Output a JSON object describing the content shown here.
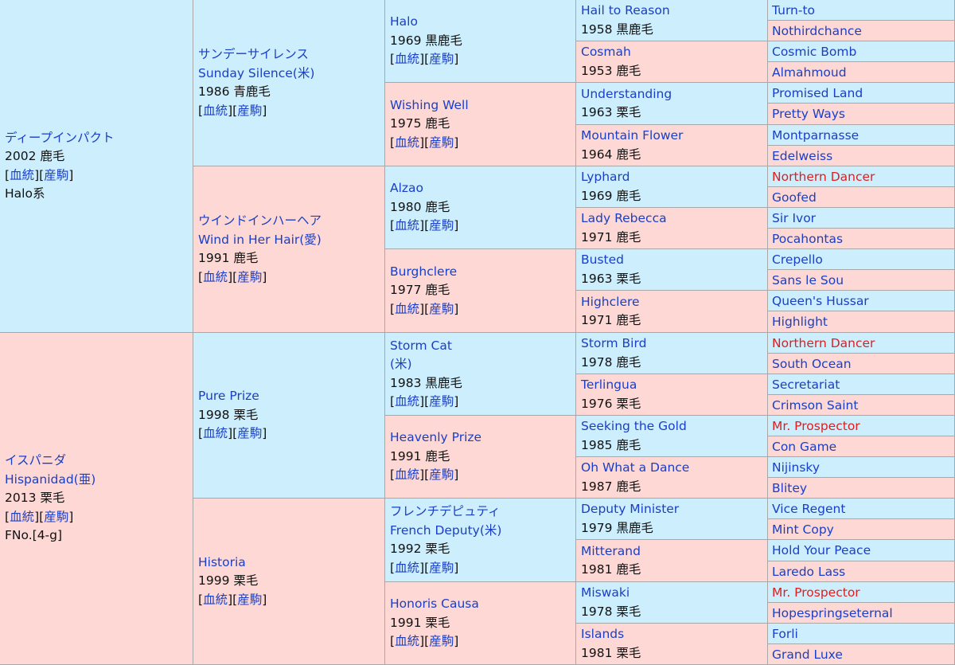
{
  "links": {
    "bloodline": "血統",
    "progeny": "産駒"
  },
  "colors": {
    "male_bg": "#cdeefc",
    "female_bg": "#fdd8d5",
    "link": "#1a3fc7",
    "highlight": "#e01e1e"
  },
  "gen1": [
    {
      "id": "deep-impact",
      "sex": "m",
      "lines": [
        "ディープインパクト"
      ],
      "info": "2002 鹿毛",
      "links": true,
      "extra": [
        "Halo系"
      ]
    },
    {
      "id": "hispanidad",
      "sex": "f",
      "lines": [
        "イスパニダ",
        "Hispanidad(亜)"
      ],
      "info": "2013 栗毛",
      "links": true,
      "extra": [
        "FNo.[4-g]"
      ]
    }
  ],
  "gen2": [
    {
      "id": "sunday-silence",
      "sex": "m",
      "lines": [
        "サンデーサイレンス",
        "Sunday Silence(米)"
      ],
      "info": "1986 青鹿毛",
      "links": true
    },
    {
      "id": "wind-in-her-hair",
      "sex": "f",
      "lines": [
        "ウインドインハーヘア",
        "Wind in Her Hair(愛)"
      ],
      "info": "1991 鹿毛",
      "links": true
    },
    {
      "id": "pure-prize",
      "sex": "m",
      "lines": [
        "Pure Prize"
      ],
      "info": "1998 栗毛",
      "links": true
    },
    {
      "id": "historia",
      "sex": "f",
      "lines": [
        "Historia"
      ],
      "info": "1999 栗毛",
      "links": true
    }
  ],
  "gen3": [
    {
      "id": "halo",
      "sex": "m",
      "lines": [
        "Halo"
      ],
      "info": "1969 黒鹿毛",
      "links": true
    },
    {
      "id": "wishing-well",
      "sex": "f",
      "lines": [
        "Wishing Well"
      ],
      "info": "1975 鹿毛",
      "links": true
    },
    {
      "id": "alzao",
      "sex": "m",
      "lines": [
        "Alzao"
      ],
      "info": "1980 鹿毛",
      "links": true
    },
    {
      "id": "burghclere",
      "sex": "f",
      "lines": [
        "Burghclere"
      ],
      "info": "1977 鹿毛",
      "links": true
    },
    {
      "id": "storm-cat",
      "sex": "m",
      "lines": [
        "Storm Cat",
        "(米)"
      ],
      "info": "1983 黒鹿毛",
      "links": true
    },
    {
      "id": "heavenly-prize",
      "sex": "f",
      "lines": [
        "Heavenly Prize"
      ],
      "info": "1991 鹿毛",
      "links": true
    },
    {
      "id": "french-deputy",
      "sex": "m",
      "lines": [
        "フレンチデピュティ",
        "French Deputy(米)"
      ],
      "info": "1992 栗毛",
      "links": true
    },
    {
      "id": "honoris-causa",
      "sex": "f",
      "lines": [
        "Honoris Causa"
      ],
      "info": "1991 栗毛",
      "links": true
    }
  ],
  "gen4": [
    {
      "id": "hail-to-reason",
      "sex": "m",
      "lines": [
        "Hail to Reason"
      ],
      "info": "1958 黒鹿毛"
    },
    {
      "id": "cosmah",
      "sex": "f",
      "lines": [
        "Cosmah"
      ],
      "info": "1953 鹿毛"
    },
    {
      "id": "understanding",
      "sex": "m",
      "lines": [
        "Understanding"
      ],
      "info": "1963 栗毛"
    },
    {
      "id": "mountain-flower",
      "sex": "f",
      "lines": [
        "Mountain Flower"
      ],
      "info": "1964 鹿毛"
    },
    {
      "id": "lyphard",
      "sex": "m",
      "lines": [
        "Lyphard"
      ],
      "info": "1969 鹿毛"
    },
    {
      "id": "lady-rebecca",
      "sex": "f",
      "lines": [
        "Lady Rebecca"
      ],
      "info": "1971 鹿毛"
    },
    {
      "id": "busted",
      "sex": "m",
      "lines": [
        "Busted"
      ],
      "info": "1963 栗毛"
    },
    {
      "id": "highclere",
      "sex": "f",
      "lines": [
        "Highclere"
      ],
      "info": "1971 鹿毛"
    },
    {
      "id": "storm-bird",
      "sex": "m",
      "lines": [
        "Storm Bird"
      ],
      "info": "1978 鹿毛"
    },
    {
      "id": "terlingua",
      "sex": "f",
      "lines": [
        "Terlingua"
      ],
      "info": "1976 栗毛"
    },
    {
      "id": "seeking-the-gold",
      "sex": "m",
      "lines": [
        "Seeking the Gold"
      ],
      "info": "1985 鹿毛"
    },
    {
      "id": "oh-what-a-dance",
      "sex": "f",
      "lines": [
        "Oh What a Dance"
      ],
      "info": "1987 鹿毛"
    },
    {
      "id": "deputy-minister",
      "sex": "m",
      "lines": [
        "Deputy Minister"
      ],
      "info": "1979 黒鹿毛"
    },
    {
      "id": "mitterand",
      "sex": "f",
      "lines": [
        "Mitterand"
      ],
      "info": "1981 鹿毛"
    },
    {
      "id": "miswaki",
      "sex": "m",
      "lines": [
        "Miswaki"
      ],
      "info": "1978 栗毛"
    },
    {
      "id": "islands",
      "sex": "f",
      "lines": [
        "Islands"
      ],
      "info": "1981 栗毛"
    }
  ],
  "gen5": [
    {
      "name": "Turn-to",
      "sex": "m",
      "red": false
    },
    {
      "name": "Nothirdchance",
      "sex": "f",
      "red": false
    },
    {
      "name": "Cosmic Bomb",
      "sex": "m",
      "red": false
    },
    {
      "name": "Almahmoud",
      "sex": "f",
      "red": false
    },
    {
      "name": "Promised Land",
      "sex": "m",
      "red": false
    },
    {
      "name": "Pretty Ways",
      "sex": "f",
      "red": false
    },
    {
      "name": "Montparnasse",
      "sex": "m",
      "red": false
    },
    {
      "name": "Edelweiss",
      "sex": "f",
      "red": false
    },
    {
      "name": "Northern Dancer",
      "sex": "m",
      "red": true
    },
    {
      "name": "Goofed",
      "sex": "f",
      "red": false
    },
    {
      "name": "Sir Ivor",
      "sex": "m",
      "red": false
    },
    {
      "name": "Pocahontas",
      "sex": "f",
      "red": false
    },
    {
      "name": "Crepello",
      "sex": "m",
      "red": false
    },
    {
      "name": "Sans le Sou",
      "sex": "f",
      "red": false
    },
    {
      "name": "Queen's Hussar",
      "sex": "m",
      "red": false
    },
    {
      "name": "Highlight",
      "sex": "f",
      "red": false
    },
    {
      "name": "Northern Dancer",
      "sex": "m",
      "red": true
    },
    {
      "name": "South Ocean",
      "sex": "f",
      "red": false
    },
    {
      "name": "Secretariat",
      "sex": "m",
      "red": false
    },
    {
      "name": "Crimson Saint",
      "sex": "f",
      "red": false
    },
    {
      "name": "Mr. Prospector",
      "sex": "m",
      "red": true
    },
    {
      "name": "Con Game",
      "sex": "f",
      "red": false
    },
    {
      "name": "Nijinsky",
      "sex": "m",
      "red": false
    },
    {
      "name": "Blitey",
      "sex": "f",
      "red": false
    },
    {
      "name": "Vice Regent",
      "sex": "m",
      "red": false
    },
    {
      "name": "Mint Copy",
      "sex": "f",
      "red": false
    },
    {
      "name": "Hold Your Peace",
      "sex": "m",
      "red": false
    },
    {
      "name": "Laredo Lass",
      "sex": "f",
      "red": false
    },
    {
      "name": "Mr. Prospector",
      "sex": "m",
      "red": true
    },
    {
      "name": "Hopespringseternal",
      "sex": "f",
      "red": false
    },
    {
      "name": "Forli",
      "sex": "m",
      "red": false
    },
    {
      "name": "Grand Luxe",
      "sex": "f",
      "red": false
    }
  ]
}
